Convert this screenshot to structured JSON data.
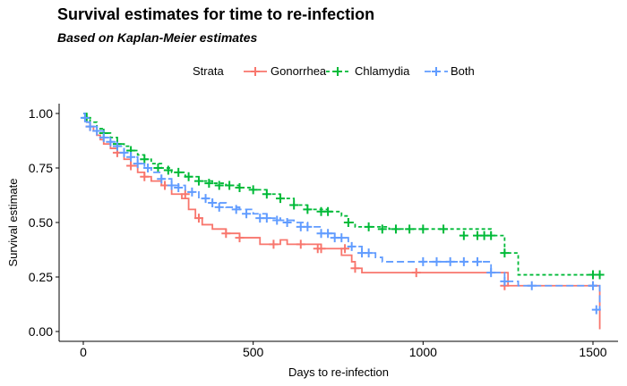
{
  "chart_data": {
    "type": "line",
    "title": "Survival estimates for time to re-infection",
    "subtitle": "Based on Kaplan-Meier estimates",
    "xlabel": "Days to re-infection",
    "ylabel": "Survival estimate",
    "xlim": [
      0,
      1520
    ],
    "ylim": [
      0,
      1
    ],
    "xticks": [
      0,
      500,
      1000,
      1500
    ],
    "yticks": [
      0,
      0.25,
      0.5,
      0.75,
      1
    ],
    "ytick_labels": [
      "0.00",
      "0.25",
      "0.50",
      "0.75",
      "1.00"
    ],
    "grid": false,
    "legend": {
      "title": "Strata",
      "position": "top"
    },
    "series": [
      {
        "name": "Gonorrhea",
        "color": "#F8766D",
        "dash": "solid",
        "x": [
          0,
          5,
          10,
          20,
          30,
          40,
          50,
          60,
          80,
          100,
          120,
          140,
          160,
          180,
          200,
          230,
          260,
          290,
          310,
          330,
          350,
          380,
          420,
          460,
          520,
          580,
          600,
          700,
          760,
          790,
          800,
          820,
          1240,
          1250,
          1510,
          1520
        ],
        "y": [
          1.0,
          0.98,
          0.96,
          0.94,
          0.92,
          0.9,
          0.88,
          0.86,
          0.84,
          0.82,
          0.79,
          0.76,
          0.73,
          0.71,
          0.69,
          0.67,
          0.63,
          0.61,
          0.56,
          0.52,
          0.49,
          0.47,
          0.45,
          0.43,
          0.4,
          0.42,
          0.4,
          0.38,
          0.35,
          0.32,
          0.29,
          0.27,
          0.27,
          0.21,
          0.21,
          0.01
        ],
        "censor_x": [
          20,
          100,
          140,
          180,
          240,
          300,
          340,
          420,
          460,
          560,
          640,
          690,
          700,
          770,
          800,
          980,
          1240,
          1500
        ],
        "censor_y": [
          0.94,
          0.82,
          0.76,
          0.71,
          0.67,
          0.63,
          0.52,
          0.45,
          0.43,
          0.4,
          0.4,
          0.38,
          0.38,
          0.38,
          0.29,
          0.27,
          0.21,
          0.21
        ]
      },
      {
        "name": "Chlamydia",
        "color": "#00BA38",
        "dash": "dashed",
        "x": [
          0,
          10,
          20,
          40,
          60,
          80,
          100,
          120,
          140,
          160,
          180,
          200,
          230,
          260,
          300,
          340,
          380,
          420,
          460,
          500,
          540,
          580,
          620,
          660,
          720,
          760,
          780,
          800,
          900,
          1000,
          1200,
          1240,
          1280,
          1510,
          1520
        ],
        "y": [
          1.0,
          0.98,
          0.96,
          0.93,
          0.91,
          0.89,
          0.86,
          0.85,
          0.83,
          0.81,
          0.79,
          0.77,
          0.75,
          0.73,
          0.71,
          0.69,
          0.68,
          0.67,
          0.66,
          0.65,
          0.63,
          0.61,
          0.58,
          0.56,
          0.55,
          0.53,
          0.5,
          0.48,
          0.47,
          0.47,
          0.44,
          0.36,
          0.26,
          0.26,
          0.26
        ],
        "censor_x": [
          10,
          60,
          100,
          140,
          180,
          220,
          250,
          280,
          310,
          340,
          370,
          400,
          430,
          460,
          500,
          540,
          580,
          620,
          660,
          700,
          720,
          780,
          840,
          880,
          920,
          960,
          1000,
          1060,
          1120,
          1160,
          1180,
          1200,
          1240,
          1500,
          1520
        ],
        "censor_y": [
          0.98,
          0.91,
          0.86,
          0.83,
          0.79,
          0.75,
          0.74,
          0.73,
          0.71,
          0.69,
          0.68,
          0.67,
          0.67,
          0.66,
          0.65,
          0.63,
          0.61,
          0.58,
          0.56,
          0.55,
          0.55,
          0.5,
          0.48,
          0.47,
          0.47,
          0.47,
          0.47,
          0.47,
          0.44,
          0.44,
          0.44,
          0.44,
          0.36,
          0.26,
          0.26
        ]
      },
      {
        "name": "Both",
        "color": "#619CFF",
        "dash": "longdash",
        "x": [
          0,
          5,
          10,
          20,
          40,
          60,
          80,
          100,
          120,
          140,
          160,
          180,
          200,
          230,
          260,
          300,
          340,
          380,
          420,
          460,
          500,
          540,
          580,
          620,
          660,
          700,
          740,
          780,
          820,
          860,
          880,
          1000,
          1160,
          1200,
          1240,
          1280,
          1510,
          1520
        ],
        "y": [
          1.0,
          0.98,
          0.96,
          0.94,
          0.92,
          0.89,
          0.87,
          0.85,
          0.82,
          0.8,
          0.77,
          0.75,
          0.73,
          0.7,
          0.67,
          0.64,
          0.61,
          0.59,
          0.57,
          0.56,
          0.54,
          0.52,
          0.51,
          0.5,
          0.48,
          0.45,
          0.43,
          0.39,
          0.36,
          0.34,
          0.32,
          0.32,
          0.32,
          0.27,
          0.23,
          0.21,
          0.21,
          0.1
        ],
        "censor_x": [
          5,
          20,
          40,
          60,
          80,
          100,
          120,
          140,
          160,
          190,
          230,
          260,
          280,
          320,
          360,
          380,
          400,
          450,
          480,
          520,
          540,
          570,
          600,
          640,
          660,
          700,
          720,
          740,
          760,
          790,
          820,
          840,
          1000,
          1040,
          1080,
          1120,
          1160,
          1200,
          1240,
          1320,
          1500,
          1510
        ],
        "censor_y": [
          0.98,
          0.94,
          0.92,
          0.89,
          0.87,
          0.85,
          0.82,
          0.8,
          0.77,
          0.75,
          0.7,
          0.67,
          0.66,
          0.64,
          0.61,
          0.59,
          0.57,
          0.56,
          0.54,
          0.52,
          0.52,
          0.51,
          0.5,
          0.48,
          0.48,
          0.45,
          0.45,
          0.43,
          0.43,
          0.39,
          0.36,
          0.36,
          0.32,
          0.32,
          0.32,
          0.32,
          0.32,
          0.27,
          0.23,
          0.21,
          0.21,
          0.1
        ]
      }
    ]
  }
}
